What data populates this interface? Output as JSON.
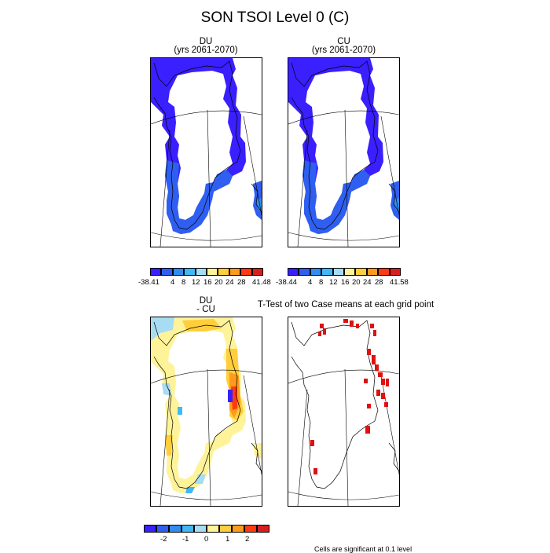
{
  "title": "SON TSOI Level 0 (C)",
  "panels": {
    "du": {
      "title_line1": "DU",
      "title_line2": "(yrs 2061-2070)"
    },
    "cu": {
      "title_line1": "CU",
      "title_line2": "(yrs 2061-2070)"
    },
    "diff": {
      "title_line1": "DU",
      "title_line2": "- CU"
    },
    "ttest": {
      "title_line1": "T-Test of two Case means at each grid point"
    }
  },
  "colorbars": {
    "du": {
      "colors": [
        "#3a1fff",
        "#2f5ff0",
        "#2f8df0",
        "#3fb8f5",
        "#a8dcf2",
        "#fff39a",
        "#ffce3a",
        "#ff9a1a",
        "#ff3a12",
        "#d81f1f"
      ],
      "labels": [
        "-38.41",
        "4",
        "8",
        "12",
        "16",
        "20",
        "24",
        "28",
        "41.48"
      ]
    },
    "cu": {
      "colors": [
        "#3a1fff",
        "#2f5ff0",
        "#2f8df0",
        "#3fb8f5",
        "#a8dcf2",
        "#fff39a",
        "#ffce3a",
        "#ff9a1a",
        "#ff3a12",
        "#d81f1f"
      ],
      "labels": [
        "-38.44",
        "4",
        "8",
        "12",
        "16",
        "20",
        "24",
        "28",
        "41.58"
      ]
    },
    "diff": {
      "colors": [
        "#3a1fff",
        "#2f5ff0",
        "#2f8df0",
        "#3fb8f5",
        "#a8dcf2",
        "#fff39a",
        "#ffce3a",
        "#ff9a1a",
        "#ff3a12",
        "#d81f1f"
      ],
      "labels": [
        "-2",
        "-1",
        "0",
        "1",
        "2"
      ]
    }
  },
  "footnote": "Cells are significant at 0.1 level"
}
